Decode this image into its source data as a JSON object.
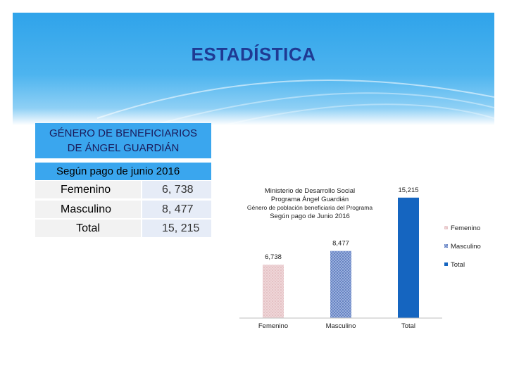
{
  "slide": {
    "title": "ESTADÍSTICA"
  },
  "table": {
    "header_line1": "GÉNERO DE BENEFICIARIOS",
    "header_line2": "DE ÁNGEL GUARDIÁN",
    "subheader": "Según pago de junio 2016",
    "rows": [
      {
        "label": "Femenino",
        "value": "6, 738"
      },
      {
        "label": "Masculino",
        "value": "8, 477"
      },
      {
        "label": "Total",
        "value": "15, 215"
      }
    ]
  },
  "colors": {
    "header_blue": "#3aa6ee",
    "title_text": "#1f3a93",
    "femenino": "#e8c6c8",
    "masculino": "#5f7fc0",
    "total": "#1565c0"
  },
  "chart_data": {
    "type": "bar",
    "title_lines": [
      "Ministerio de Desarrollo Social",
      "Programa Ángel Guardián",
      "Género de población beneficiaria del Programa",
      "Según pago de Junio 2016"
    ],
    "categories": [
      "Femenino",
      "Masculino",
      "Total"
    ],
    "values": [
      6738,
      8477,
      15215
    ],
    "data_labels": [
      "6,738",
      "8,477",
      "15,215"
    ],
    "legend": [
      "Femenino",
      "Masculino",
      "Total"
    ],
    "legend_position": "right",
    "xlabel": "",
    "ylabel": "",
    "ylim": [
      0,
      16000
    ],
    "grid": false
  }
}
